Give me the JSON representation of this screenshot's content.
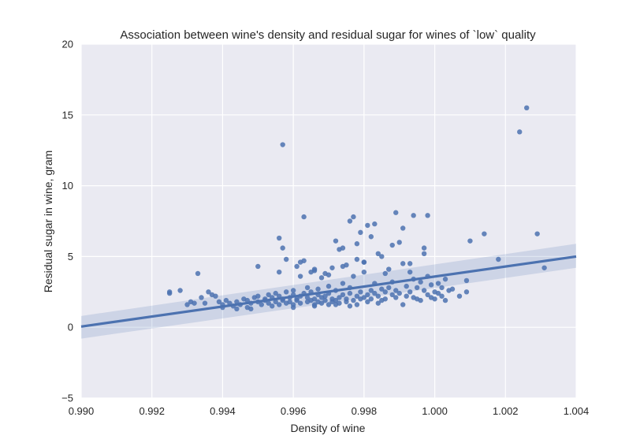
{
  "chart_data": {
    "type": "scatter",
    "title": "Association between wine's density and residual sugar for wines of `low` quality",
    "xlabel": "Density of wine",
    "ylabel": "Residual sugar in wine, gram",
    "xlim": [
      0.99,
      1.004
    ],
    "ylim": [
      -5,
      20
    ],
    "xticks": [
      0.99,
      0.992,
      0.994,
      0.996,
      0.998,
      1.0,
      1.002,
      1.004
    ],
    "xtick_labels": [
      "0.990",
      "0.992",
      "0.994",
      "0.996",
      "0.998",
      "1.000",
      "1.002",
      "1.004"
    ],
    "yticks": [
      -5,
      0,
      5,
      10,
      15,
      20
    ],
    "ytick_labels": [
      "−5",
      "0",
      "5",
      "10",
      "15",
      "20"
    ],
    "grid": true,
    "legend": "none",
    "colors": {
      "background": "#eaeaf2",
      "grid": "#ffffff",
      "point": "#4c72b0",
      "line": "#4c72b0",
      "band": "#4c72b0"
    },
    "regression": {
      "x": [
        0.99,
        1.004
      ],
      "y": [
        0.05,
        5.0
      ],
      "ci_upper": [
        0.8,
        5.9
      ],
      "ci_lower": [
        -0.8,
        4.2
      ]
    },
    "points": [
      [
        0.9925,
        2.5
      ],
      [
        0.9925,
        2.4
      ],
      [
        0.9928,
        2.6
      ],
      [
        0.993,
        1.6
      ],
      [
        0.9931,
        1.8
      ],
      [
        0.9932,
        1.7
      ],
      [
        0.9933,
        3.8
      ],
      [
        0.9934,
        2.1
      ],
      [
        0.9935,
        1.7
      ],
      [
        0.9936,
        2.5
      ],
      [
        0.9937,
        2.3
      ],
      [
        0.9938,
        2.2
      ],
      [
        0.9939,
        1.8
      ],
      [
        0.994,
        1.6
      ],
      [
        0.9941,
        1.9
      ],
      [
        0.9942,
        1.7
      ],
      [
        0.9943,
        1.5
      ],
      [
        0.9944,
        1.8
      ],
      [
        0.9945,
        1.6
      ],
      [
        0.9946,
        2.0
      ],
      [
        0.9947,
        1.4
      ],
      [
        0.9947,
        1.9
      ],
      [
        0.9948,
        1.7
      ],
      [
        0.9949,
        2.1
      ],
      [
        0.995,
        1.8
      ],
      [
        0.995,
        2.2
      ],
      [
        0.995,
        4.3
      ],
      [
        0.9951,
        1.6
      ],
      [
        0.9952,
        2.0
      ],
      [
        0.9952,
        1.9
      ],
      [
        0.9953,
        2.3
      ],
      [
        0.9953,
        1.7
      ],
      [
        0.9954,
        2.1
      ],
      [
        0.9955,
        1.8
      ],
      [
        0.9955,
        2.4
      ],
      [
        0.9956,
        1.6
      ],
      [
        0.9956,
        2.2
      ],
      [
        0.9956,
        3.9
      ],
      [
        0.9957,
        2.0
      ],
      [
        0.9957,
        1.9
      ],
      [
        0.9958,
        1.7
      ],
      [
        0.9958,
        2.5
      ],
      [
        0.9956,
        6.3
      ],
      [
        0.9957,
        5.6
      ],
      [
        0.9957,
        12.9
      ],
      [
        0.9958,
        4.8
      ],
      [
        0.9959,
        2.1
      ],
      [
        0.9959,
        1.8
      ],
      [
        0.996,
        2.3
      ],
      [
        0.996,
        1.6
      ],
      [
        0.996,
        2.6
      ],
      [
        0.9961,
        2.0
      ],
      [
        0.9961,
        1.9
      ],
      [
        0.9961,
        4.3
      ],
      [
        0.9962,
        2.2
      ],
      [
        0.9962,
        1.7
      ],
      [
        0.9962,
        3.6
      ],
      [
        0.9963,
        2.4
      ],
      [
        0.9963,
        4.7
      ],
      [
        0.9963,
        7.8
      ],
      [
        0.9964,
        1.8
      ],
      [
        0.9964,
        2.1
      ],
      [
        0.9964,
        2.8
      ],
      [
        0.9965,
        1.9
      ],
      [
        0.9965,
        2.5
      ],
      [
        0.9965,
        3.9
      ],
      [
        0.9966,
        2.0
      ],
      [
        0.9966,
        1.6
      ],
      [
        0.9966,
        4.1
      ],
      [
        0.9967,
        2.3
      ],
      [
        0.9967,
        1.8
      ],
      [
        0.9967,
        2.7
      ],
      [
        0.9968,
        2.1
      ],
      [
        0.9968,
        1.7
      ],
      [
        0.9968,
        3.5
      ],
      [
        0.9969,
        2.2
      ],
      [
        0.9969,
        1.9
      ],
      [
        0.9969,
        3.8
      ],
      [
        0.997,
        2.4
      ],
      [
        0.997,
        1.6
      ],
      [
        0.997,
        2.9
      ],
      [
        0.9971,
        2.0
      ],
      [
        0.9971,
        1.8
      ],
      [
        0.9971,
        4.2
      ],
      [
        0.9972,
        2.6
      ],
      [
        0.9972,
        1.9
      ],
      [
        0.9972,
        6.1
      ],
      [
        0.9973,
        2.1
      ],
      [
        0.9973,
        5.5
      ],
      [
        0.9973,
        1.7
      ],
      [
        0.9974,
        2.3
      ],
      [
        0.9974,
        5.6
      ],
      [
        0.9974,
        3.1
      ],
      [
        0.9975,
        2.0
      ],
      [
        0.9975,
        1.8
      ],
      [
        0.9975,
        4.4
      ],
      [
        0.9976,
        2.4
      ],
      [
        0.9976,
        7.5
      ],
      [
        0.9976,
        2.8
      ],
      [
        0.9977,
        1.9
      ],
      [
        0.9977,
        7.8
      ],
      [
        0.9977,
        3.6
      ],
      [
        0.9978,
        2.2
      ],
      [
        0.9978,
        1.6
      ],
      [
        0.9978,
        5.9
      ],
      [
        0.9979,
        2.5
      ],
      [
        0.9979,
        6.7
      ],
      [
        0.9979,
        2.0
      ],
      [
        0.998,
        2.1
      ],
      [
        0.998,
        4.6
      ],
      [
        0.998,
        3.9
      ],
      [
        0.9981,
        2.3
      ],
      [
        0.9981,
        1.8
      ],
      [
        0.9981,
        7.2
      ],
      [
        0.9982,
        2.6
      ],
      [
        0.9982,
        6.4
      ],
      [
        0.9982,
        2.0
      ],
      [
        0.9983,
        2.4
      ],
      [
        0.9983,
        7.3
      ],
      [
        0.9983,
        3.1
      ],
      [
        0.9984,
        2.2
      ],
      [
        0.9984,
        5.2
      ],
      [
        0.9985,
        2.7
      ],
      [
        0.9985,
        1.9
      ],
      [
        0.9986,
        2.5
      ],
      [
        0.9986,
        3.8
      ],
      [
        0.9987,
        2.8
      ],
      [
        0.9987,
        4.1
      ],
      [
        0.9988,
        2.3
      ],
      [
        0.9988,
        5.8
      ],
      [
        0.9989,
        2.6
      ],
      [
        0.9989,
        8.1
      ],
      [
        0.9989,
        2.1
      ],
      [
        0.999,
        6.0
      ],
      [
        0.999,
        2.4
      ],
      [
        0.9991,
        7.0
      ],
      [
        0.9991,
        4.5
      ],
      [
        0.9991,
        1.6
      ],
      [
        0.9992,
        2.9
      ],
      [
        0.9992,
        2.2
      ],
      [
        0.9993,
        3.9
      ],
      [
        0.9993,
        2.5
      ],
      [
        0.9994,
        7.9
      ],
      [
        0.9994,
        3.4
      ],
      [
        0.9994,
        2.1
      ],
      [
        0.9995,
        2.8
      ],
      [
        0.9995,
        2.0
      ],
      [
        0.9996,
        3.2
      ],
      [
        0.9996,
        1.9
      ],
      [
        0.9997,
        5.2
      ],
      [
        0.9997,
        5.6
      ],
      [
        0.9997,
        2.6
      ],
      [
        0.9998,
        7.9
      ],
      [
        0.9998,
        2.3
      ],
      [
        0.9999,
        3.0
      ],
      [
        0.9999,
        2.1
      ],
      [
        1.0,
        2.5
      ],
      [
        1.0,
        2.0
      ],
      [
        1.0001,
        3.1
      ],
      [
        1.0001,
        2.4
      ],
      [
        1.0002,
        2.8
      ],
      [
        1.0002,
        2.2
      ],
      [
        1.0003,
        1.9
      ],
      [
        1.0003,
        3.4
      ],
      [
        1.0004,
        2.6
      ],
      [
        1.0005,
        2.7
      ],
      [
        1.0007,
        2.2
      ],
      [
        1.0009,
        2.5
      ],
      [
        1.0009,
        3.3
      ],
      [
        1.001,
        6.1
      ],
      [
        1.0014,
        6.6
      ],
      [
        1.0018,
        4.8
      ],
      [
        1.0024,
        13.8
      ],
      [
        1.0026,
        15.5
      ],
      [
        1.0029,
        6.6
      ],
      [
        1.0031,
        4.2
      ],
      [
        0.9962,
        4.6
      ],
      [
        0.9966,
        4.0
      ],
      [
        0.997,
        3.7
      ],
      [
        0.9974,
        4.3
      ],
      [
        0.9978,
        4.8
      ],
      [
        0.998,
        4.6
      ],
      [
        0.9985,
        5.0
      ],
      [
        0.9988,
        3.2
      ],
      [
        0.9993,
        4.5
      ],
      [
        0.9998,
        3.6
      ],
      [
        0.9984,
        1.7
      ],
      [
        0.9986,
        2.0
      ],
      [
        0.9976,
        1.5
      ],
      [
        0.9972,
        1.6
      ],
      [
        0.9966,
        1.5
      ],
      [
        0.996,
        1.4
      ],
      [
        0.9954,
        1.5
      ],
      [
        0.9948,
        1.3
      ],
      [
        0.9944,
        1.3
      ],
      [
        0.994,
        1.4
      ]
    ]
  }
}
